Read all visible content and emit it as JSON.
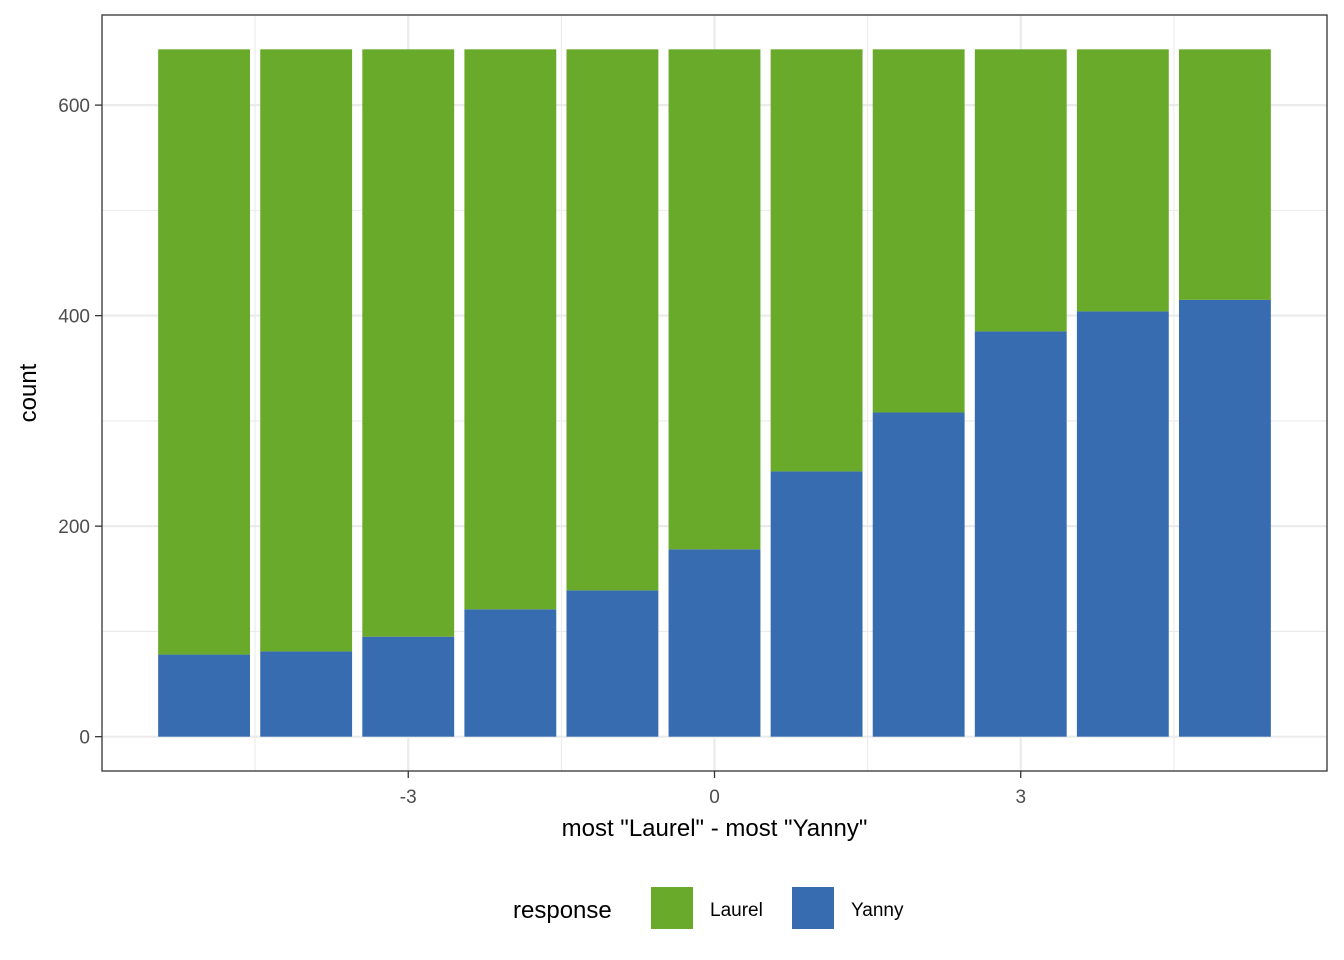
{
  "chart_data": {
    "type": "bar",
    "stacked": true,
    "x": [
      -5,
      -4,
      -3,
      -2,
      -1,
      0,
      1,
      2,
      3,
      4,
      5
    ],
    "series": [
      {
        "name": "Yanny",
        "color": "#386cb0",
        "values": [
          78,
          81,
          95,
          121,
          139,
          178,
          252,
          308,
          385,
          404,
          415
        ]
      },
      {
        "name": "Laurel",
        "color": "#6aaa2b",
        "values": [
          575,
          572,
          558,
          532,
          514,
          475,
          401,
          345,
          268,
          249,
          238
        ]
      }
    ],
    "xlabel": "most \"Laurel\" - most \"Yanny\"",
    "ylabel": "count",
    "xticks": [
      -3,
      0,
      3
    ],
    "xtick_labels": [
      "-3",
      "0",
      "3"
    ],
    "yticks": [
      0,
      200,
      400,
      600
    ],
    "ytick_labels": [
      "0",
      "200",
      "400",
      "600"
    ],
    "xlim": [
      -6,
      6
    ],
    "ylim": [
      -32.6,
      685.6
    ],
    "grid": true,
    "legend": {
      "title": "response",
      "position": "bottom",
      "entries": [
        {
          "label": "Laurel",
          "color": "#6aaa2b"
        },
        {
          "label": "Yanny",
          "color": "#386cb0"
        }
      ]
    }
  }
}
